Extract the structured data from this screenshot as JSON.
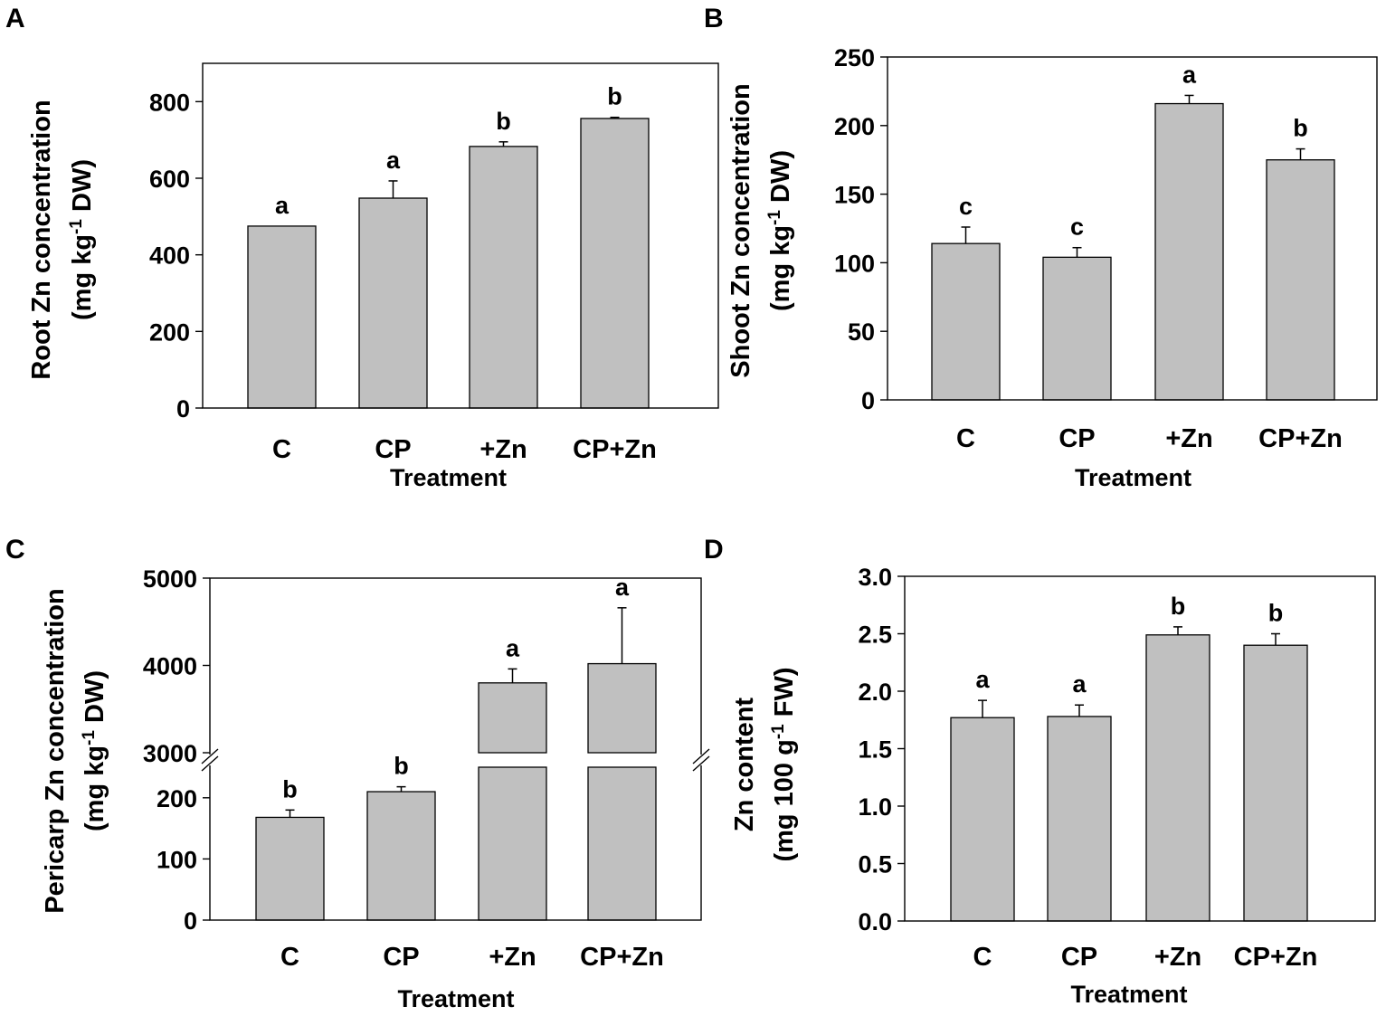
{
  "colors": {
    "bar_fill": "#c0c0c0",
    "bar_stroke": "#000000",
    "background": "#ffffff"
  },
  "chart_data": [
    {
      "panel": "A",
      "type": "bar",
      "categories": [
        "C",
        "CP",
        "+Zn",
        "CP+Zn"
      ],
      "values": [
        475,
        548,
        683,
        756
      ],
      "errors": [
        0,
        45,
        12,
        3
      ],
      "significance": [
        "a",
        "a",
        "b",
        "b"
      ],
      "xlabel": "Treatment",
      "ylabel": [
        "Root Zn concentration",
        "(mg kg",
        "-1",
        " DW)"
      ],
      "ylim": [
        0,
        900
      ],
      "yticks": [
        "0",
        "200",
        "400",
        "600",
        "800"
      ],
      "ytick_values": [
        0,
        200,
        400,
        600,
        800
      ]
    },
    {
      "panel": "B",
      "type": "bar",
      "categories": [
        "C",
        "CP",
        "+Zn",
        "CP+Zn"
      ],
      "values": [
        114,
        104,
        216,
        175
      ],
      "errors": [
        12,
        7,
        6,
        8
      ],
      "significance": [
        "c",
        "c",
        "a",
        "b"
      ],
      "xlabel": "Treatment",
      "ylabel": [
        "Shoot Zn concentration",
        "(mg kg",
        "-1",
        " DW)"
      ],
      "ylim": [
        0,
        250
      ],
      "yticks": [
        "0",
        "50",
        "100",
        "150",
        "200",
        "250"
      ],
      "ytick_values": [
        0,
        50,
        100,
        150,
        200,
        250
      ]
    },
    {
      "panel": "C",
      "type": "bar",
      "broken_axis": true,
      "categories": [
        "C",
        "CP",
        "+Zn",
        "CP+Zn"
      ],
      "values": [
        168,
        210,
        3800,
        4020
      ],
      "errors": [
        12,
        8,
        160,
        640
      ],
      "significance": [
        "b",
        "b",
        "a",
        "a"
      ],
      "xlabel": "Treatment",
      "ylabel": [
        "Pericarp Zn concentration",
        "(mg kg",
        "-1",
        " DW)"
      ],
      "lower_ylim": [
        0,
        250
      ],
      "upper_ylim": [
        3000,
        5000
      ],
      "yticks": [
        "0",
        "100",
        "200",
        "3000",
        "4000",
        "5000"
      ],
      "ytick_values": [
        0,
        100,
        200,
        3000,
        4000,
        5000
      ]
    },
    {
      "panel": "D",
      "type": "bar",
      "categories": [
        "C",
        "CP",
        "+Zn",
        "CP+Zn"
      ],
      "values": [
        1.77,
        1.78,
        2.49,
        2.4
      ],
      "errors": [
        0.15,
        0.1,
        0.07,
        0.1
      ],
      "significance": [
        "a",
        "a",
        "b",
        "b"
      ],
      "xlabel": "Treatment",
      "ylabel": [
        "Zn content",
        "(mg 100 g",
        "-1",
        " FW)"
      ],
      "ylim": [
        0,
        3.0
      ],
      "yticks": [
        "0.0",
        "0.5",
        "1.0",
        "1.5",
        "2.0",
        "2.5",
        "3.0"
      ],
      "ytick_values": [
        0,
        0.5,
        1.0,
        1.5,
        2.0,
        2.5,
        3.0
      ]
    }
  ]
}
